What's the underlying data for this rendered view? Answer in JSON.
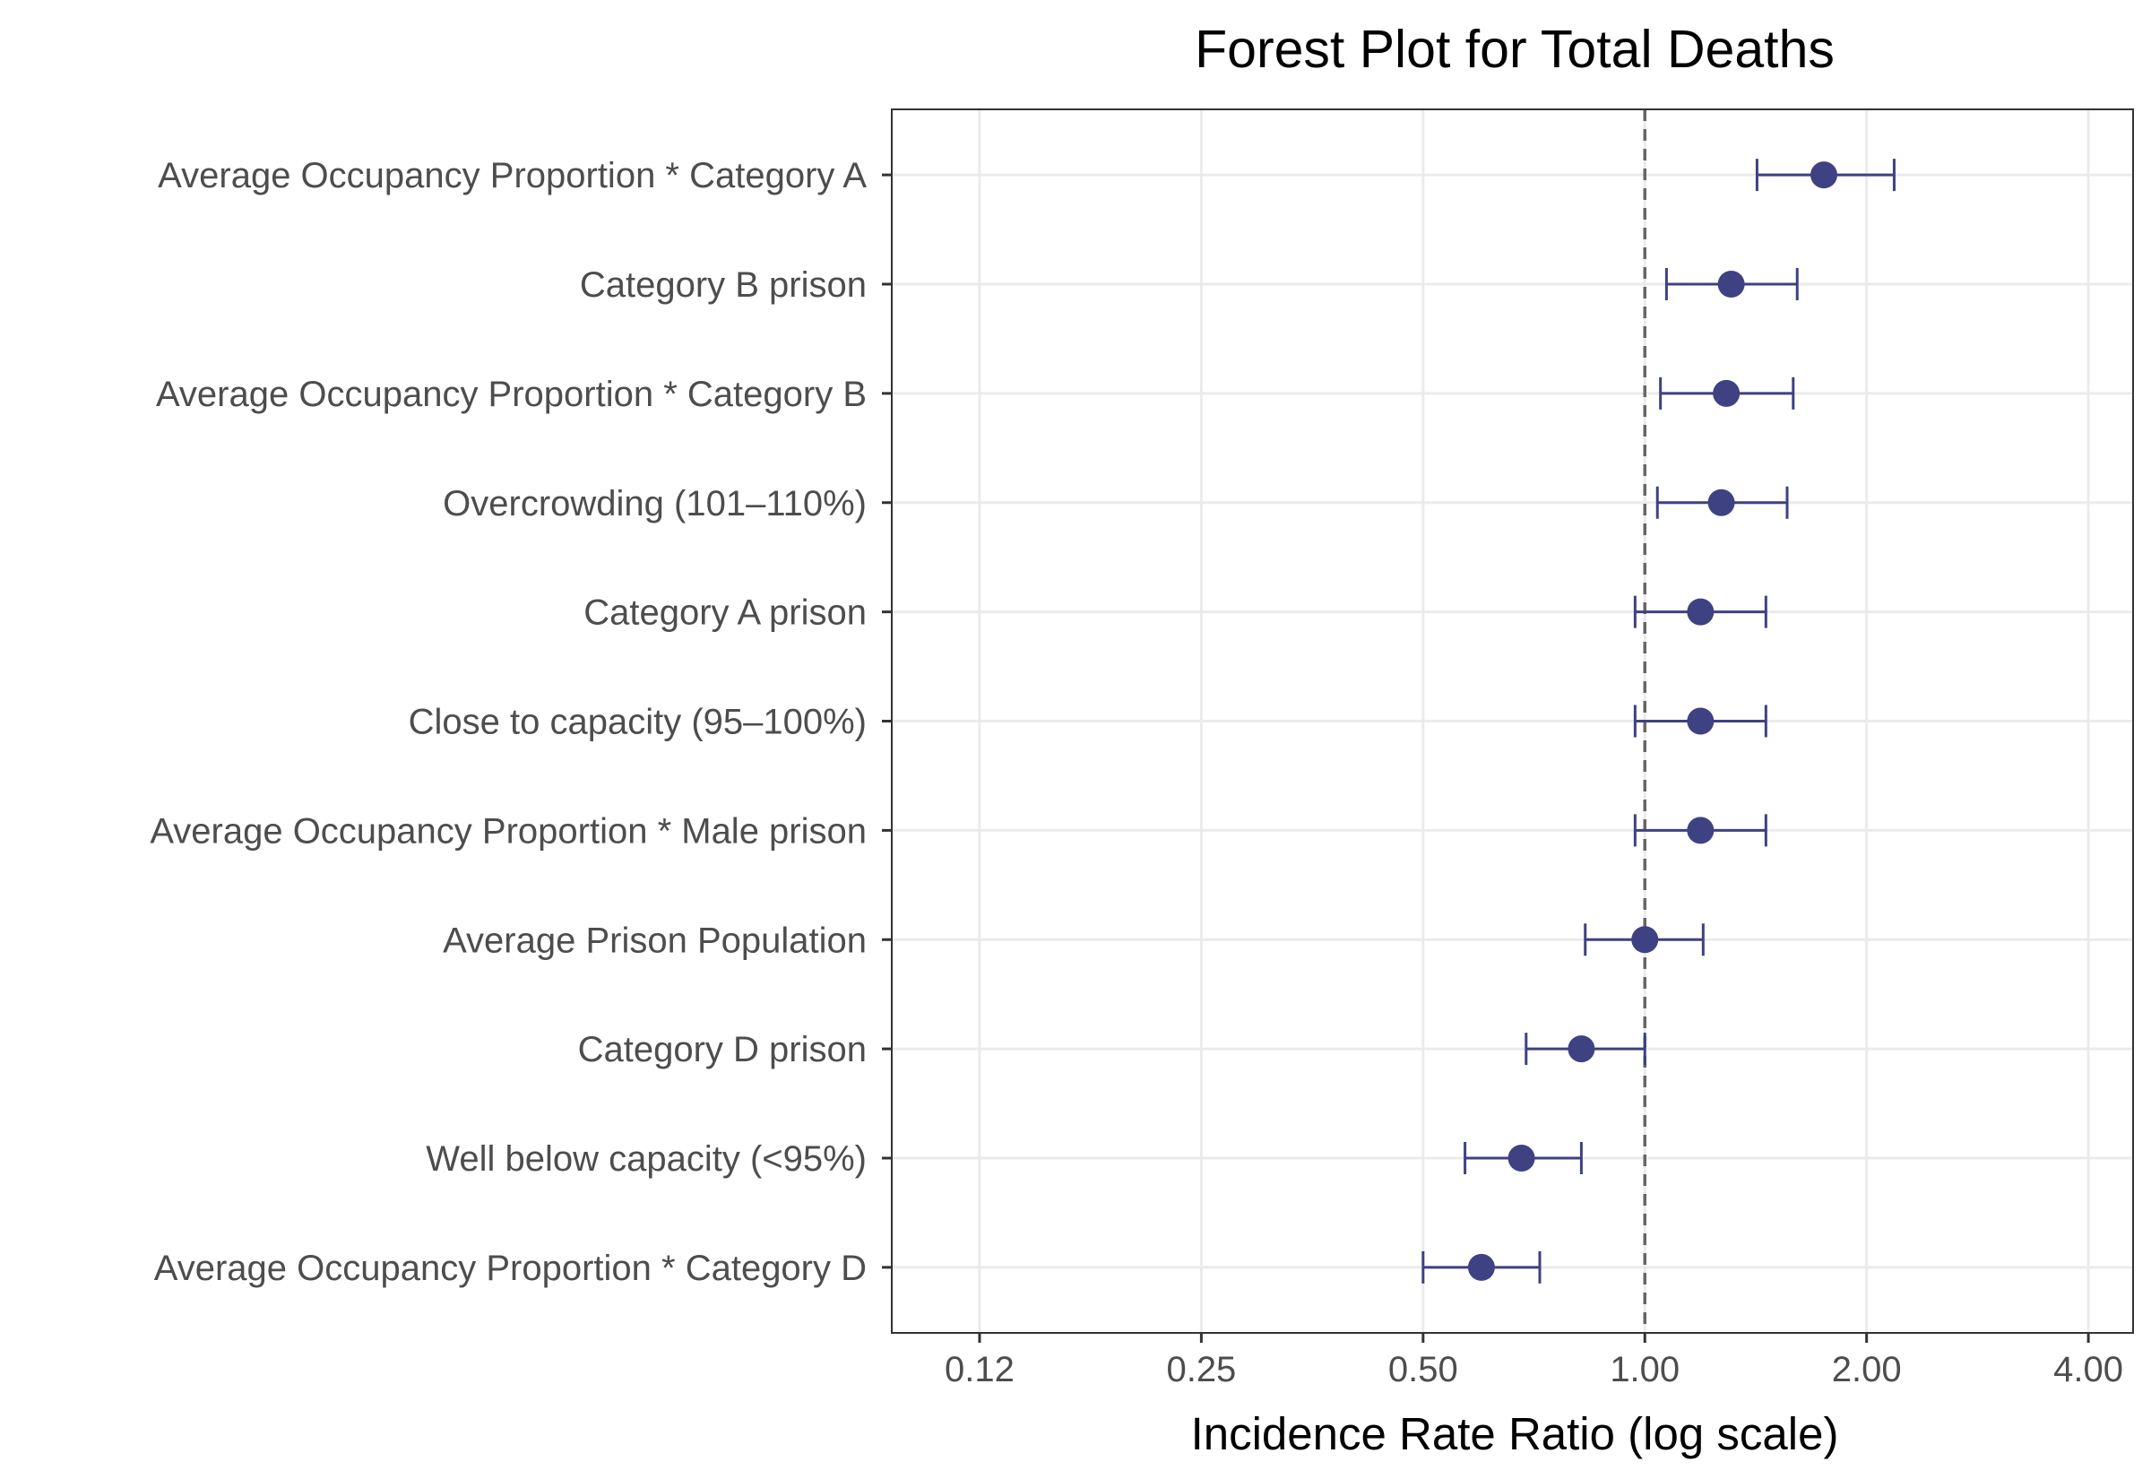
{
  "chart_data": {
    "type": "scatter",
    "subtype": "forest-plot",
    "title": "Forest Plot for Total Deaths",
    "xlabel": "Incidence Rate Ratio (log scale)",
    "ylabel": "",
    "x_scale": "log2",
    "xlim": [
      0.095,
      4.6
    ],
    "x_ticks": [
      0.125,
      0.25,
      0.5,
      1.0,
      2.0,
      4.0
    ],
    "x_tick_labels": [
      "0.12",
      "0.25",
      "0.50",
      "1.00",
      "2.00",
      "4.00"
    ],
    "reference_line": 1.0,
    "grid": true,
    "point_color": "#3e4182",
    "reference_line_color": "#666666",
    "grid_color": "#ebebeb",
    "rows": [
      {
        "label": "Average Occupancy Proportion * Category A",
        "irr": 1.75,
        "lower": 1.42,
        "upper": 2.18
      },
      {
        "label": "Category B prison",
        "irr": 1.31,
        "lower": 1.07,
        "upper": 1.61
      },
      {
        "label": "Average Occupancy Proportion * Category B",
        "irr": 1.29,
        "lower": 1.05,
        "upper": 1.59
      },
      {
        "label": "Overcrowding (101–110%)",
        "irr": 1.27,
        "lower": 1.04,
        "upper": 1.56
      },
      {
        "label": "Category A prison",
        "irr": 1.19,
        "lower": 0.97,
        "upper": 1.46
      },
      {
        "label": "Close to capacity (95–100%)",
        "irr": 1.19,
        "lower": 0.97,
        "upper": 1.46
      },
      {
        "label": "Average Occupancy Proportion * Male prison",
        "irr": 1.19,
        "lower": 0.97,
        "upper": 1.46
      },
      {
        "label": "Average Prison Population",
        "irr": 1.0,
        "lower": 0.83,
        "upper": 1.2
      },
      {
        "label": "Category D prison",
        "irr": 0.82,
        "lower": 0.69,
        "upper": 1.0
      },
      {
        "label": "Well below capacity (<95%)",
        "irr": 0.68,
        "lower": 0.57,
        "upper": 0.82
      },
      {
        "label": "Average Occupancy Proportion * Category D",
        "irr": 0.6,
        "lower": 0.5,
        "upper": 0.72
      }
    ]
  }
}
